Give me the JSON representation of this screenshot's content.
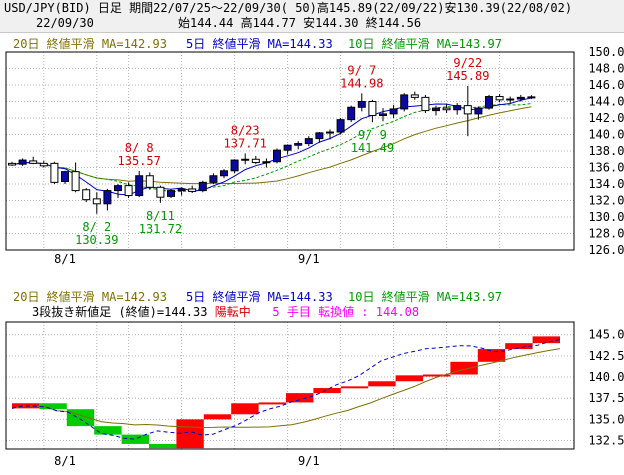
{
  "header": {
    "line1": "USD/JPY(BID) 日足 期間22/07/25～22/09/30( 50)高145.89(22/09/22)安130.39(22/08/02)",
    "date": "22/09/30",
    "ohlc": "始144.44 高144.77 安144.30 終144.56"
  },
  "colors": {
    "ma20": "#807000",
    "ma5": "#0000c8",
    "ma10": "#009900",
    "bull_candle": "#0a0aa0",
    "bear_candle": "#ffffff",
    "high_label": "#d80000",
    "low_label": "#009900",
    "rise_brick": "#ff0000",
    "fall_brick": "#00cc00",
    "grid": "#b4b4b4"
  },
  "legends": {
    "ma20": "20日 終値平滑 MA=142.93",
    "ma5": "5日 終値平滑 MA=144.33",
    "ma10": "10日 終値平滑 MA=143.97"
  },
  "breakout": {
    "prefix": "3段抜き新値足 (終値)=144.33 ",
    "status": "陽転中",
    "count": "5 手目 転換値 : 144.08"
  },
  "chart_data": [
    {
      "type": "candlestick",
      "title": "USD/JPY(BID) 日足",
      "x_tick_labels": [
        "8/1",
        "9/1"
      ],
      "ylim": [
        126,
        150
      ],
      "y_ticks": [
        126,
        128,
        130,
        132,
        134,
        136,
        138,
        140,
        142,
        144,
        146,
        148,
        150
      ],
      "y_tick_labels": [
        "126.00",
        "128.00",
        "130.00",
        "132.00",
        "134.00",
        "136.00",
        "138.00",
        "140.00",
        "142.00",
        "144.00",
        "146.00",
        "148.00",
        "150.00"
      ],
      "grid": true,
      "candles": [
        {
          "o": 136.5,
          "h": 136.7,
          "l": 136.2,
          "c": 136.3
        },
        {
          "o": 136.4,
          "h": 137.1,
          "l": 136.2,
          "c": 136.9
        },
        {
          "o": 136.8,
          "h": 137.3,
          "l": 136.4,
          "c": 136.5
        },
        {
          "o": 136.5,
          "h": 136.8,
          "l": 136.0,
          "c": 136.2
        },
        {
          "o": 136.5,
          "h": 136.7,
          "l": 134.0,
          "c": 134.2
        },
        {
          "o": 134.3,
          "h": 135.6,
          "l": 134.0,
          "c": 135.5
        },
        {
          "o": 135.5,
          "h": 136.6,
          "l": 133.0,
          "c": 133.2
        },
        {
          "o": 133.3,
          "h": 133.5,
          "l": 131.8,
          "c": 132.1
        },
        {
          "o": 132.2,
          "h": 133.0,
          "l": 130.39,
          "c": 131.6
        },
        {
          "o": 131.6,
          "h": 133.4,
          "l": 130.8,
          "c": 133.2
        },
        {
          "o": 133.2,
          "h": 134.0,
          "l": 132.3,
          "c": 133.8
        },
        {
          "o": 133.8,
          "h": 134.2,
          "l": 132.3,
          "c": 132.6
        },
        {
          "o": 132.6,
          "h": 135.57,
          "l": 132.4,
          "c": 135.0
        },
        {
          "o": 135.0,
          "h": 135.4,
          "l": 133.3,
          "c": 133.6
        },
        {
          "o": 133.6,
          "h": 133.8,
          "l": 131.72,
          "c": 132.4
        },
        {
          "o": 132.5,
          "h": 133.4,
          "l": 132.3,
          "c": 133.2
        },
        {
          "o": 133.2,
          "h": 133.6,
          "l": 132.6,
          "c": 133.4
        },
        {
          "o": 133.4,
          "h": 133.8,
          "l": 132.9,
          "c": 133.1
        },
        {
          "o": 133.2,
          "h": 134.4,
          "l": 133.0,
          "c": 134.2
        },
        {
          "o": 134.2,
          "h": 135.3,
          "l": 134.0,
          "c": 135.0
        },
        {
          "o": 135.0,
          "h": 135.8,
          "l": 134.7,
          "c": 135.6
        },
        {
          "o": 135.6,
          "h": 137.0,
          "l": 135.3,
          "c": 136.9
        },
        {
          "o": 136.9,
          "h": 137.71,
          "l": 136.4,
          "c": 137.0
        },
        {
          "o": 137.0,
          "h": 137.4,
          "l": 136.4,
          "c": 136.6
        },
        {
          "o": 136.6,
          "h": 137.1,
          "l": 136.0,
          "c": 136.7
        },
        {
          "o": 136.7,
          "h": 138.3,
          "l": 136.5,
          "c": 138.1
        },
        {
          "o": 138.1,
          "h": 138.8,
          "l": 137.6,
          "c": 138.7
        },
        {
          "o": 138.7,
          "h": 139.2,
          "l": 138.2,
          "c": 138.9
        },
        {
          "o": 138.9,
          "h": 139.8,
          "l": 138.6,
          "c": 139.5
        },
        {
          "o": 139.5,
          "h": 140.3,
          "l": 139.0,
          "c": 140.2
        },
        {
          "o": 140.2,
          "h": 140.6,
          "l": 139.4,
          "c": 140.3
        },
        {
          "o": 140.3,
          "h": 142.0,
          "l": 140.0,
          "c": 141.8
        },
        {
          "o": 141.8,
          "h": 143.5,
          "l": 141.5,
          "c": 143.3
        },
        {
          "o": 143.3,
          "h": 144.98,
          "l": 142.8,
          "c": 144.0
        },
        {
          "o": 144.0,
          "h": 144.2,
          "l": 141.49,
          "c": 142.3
        },
        {
          "o": 142.3,
          "h": 143.2,
          "l": 141.6,
          "c": 142.5
        },
        {
          "o": 142.5,
          "h": 143.6,
          "l": 142.0,
          "c": 143.1
        },
        {
          "o": 143.1,
          "h": 145.0,
          "l": 142.8,
          "c": 144.8
        },
        {
          "o": 144.8,
          "h": 145.2,
          "l": 144.2,
          "c": 144.5
        },
        {
          "o": 144.5,
          "h": 144.8,
          "l": 142.6,
          "c": 142.9
        },
        {
          "o": 142.9,
          "h": 143.5,
          "l": 142.3,
          "c": 143.2
        },
        {
          "o": 143.2,
          "h": 143.7,
          "l": 142.6,
          "c": 143.0
        },
        {
          "o": 143.0,
          "h": 143.8,
          "l": 142.4,
          "c": 143.5
        },
        {
          "o": 143.5,
          "h": 145.89,
          "l": 139.8,
          "c": 142.5
        },
        {
          "o": 142.5,
          "h": 143.4,
          "l": 141.8,
          "c": 143.2
        },
        {
          "o": 143.2,
          "h": 144.8,
          "l": 143.0,
          "c": 144.6
        },
        {
          "o": 144.6,
          "h": 144.9,
          "l": 143.9,
          "c": 144.2
        },
        {
          "o": 144.2,
          "h": 144.6,
          "l": 143.8,
          "c": 144.3
        },
        {
          "o": 144.3,
          "h": 144.8,
          "l": 144.0,
          "c": 144.5
        },
        {
          "o": 144.44,
          "h": 144.77,
          "l": 144.3,
          "c": 144.56
        }
      ],
      "annotations": [
        {
          "type": "high",
          "date": "8/ 8",
          "value": "135.57",
          "index": 12
        },
        {
          "type": "high",
          "date": "8/23",
          "value": "137.71",
          "index": 22
        },
        {
          "type": "high",
          "date": "9/ 7",
          "value": "144.98",
          "index": 33
        },
        {
          "type": "high",
          "date": "9/22",
          "value": "145.89",
          "index": 43
        },
        {
          "type": "low",
          "date": "8/ 2",
          "value": "130.39",
          "index": 8
        },
        {
          "type": "low",
          "date": "8/11",
          "value": "131.72",
          "index": 14
        },
        {
          "type": "low",
          "date": "9/ 9",
          "value": "141.49",
          "index": 34
        }
      ]
    },
    {
      "type": "new-price-bricks",
      "x_tick_labels": [
        "8/1",
        "9/1"
      ],
      "ylim": [
        131.5,
        146.5
      ],
      "y_ticks": [
        132.5,
        135,
        137.5,
        140,
        142.5,
        145
      ],
      "y_tick_labels": [
        "132.50",
        "135.00",
        "137.50",
        "140.00",
        "142.50",
        "145.00"
      ],
      "grid": true
    }
  ]
}
